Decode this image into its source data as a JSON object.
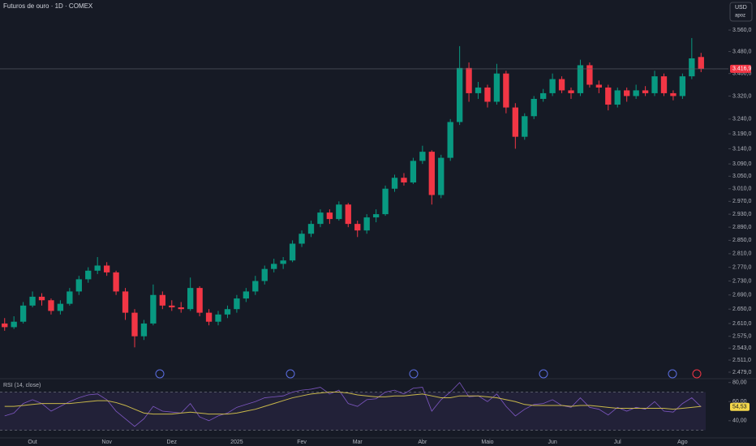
{
  "chart_data": [
    {
      "type": "candlestick",
      "title": "Futuros de ouro · 1D · COMEX",
      "log_scale": true,
      "grid": false,
      "up_color": "#089981",
      "down_color": "#f23645",
      "ylim": [
        2462,
        3675
      ],
      "yticks": [
        {
          "value": 3560,
          "label": "3.560,0"
        },
        {
          "value": 3480,
          "label": "3.480,0"
        },
        {
          "value": 3400,
          "label": "3.400,0"
        },
        {
          "value": 3320,
          "label": "3.320,0"
        },
        {
          "value": 3240,
          "label": "3.240,0"
        },
        {
          "value": 3190,
          "label": "3.190,0"
        },
        {
          "value": 3140,
          "label": "3.140,0"
        },
        {
          "value": 3090,
          "label": "3.090,0"
        },
        {
          "value": 3050,
          "label": "3.050,0"
        },
        {
          "value": 3010,
          "label": "3.010,0"
        },
        {
          "value": 2970,
          "label": "2.970,0"
        },
        {
          "value": 2930,
          "label": "2.930,0"
        },
        {
          "value": 2890,
          "label": "2.890,0"
        },
        {
          "value": 2850,
          "label": "2.850,0"
        },
        {
          "value": 2810,
          "label": "2.810,0"
        },
        {
          "value": 2770,
          "label": "2.770,0"
        },
        {
          "value": 2730,
          "label": "2.730,0"
        },
        {
          "value": 2690,
          "label": "2.690,0"
        },
        {
          "value": 2650,
          "label": "2.650,0"
        },
        {
          "value": 2610,
          "label": "2.610,0"
        },
        {
          "value": 2575,
          "label": "2.575,0"
        },
        {
          "value": 2543,
          "label": "2.543,0"
        },
        {
          "value": 2511,
          "label": "2.511,0"
        },
        {
          "value": 2479,
          "label": "2.479,0"
        }
      ],
      "categories": [
        null,
        null,
        null,
        "Out",
        null,
        null,
        null,
        null,
        null,
        null,
        null,
        "Nov",
        null,
        null,
        null,
        null,
        null,
        null,
        "Dez",
        null,
        null,
        null,
        null,
        null,
        null,
        "2025",
        null,
        null,
        null,
        null,
        null,
        null,
        "Fev",
        null,
        null,
        null,
        null,
        null,
        "Mar",
        null,
        null,
        null,
        null,
        null,
        null,
        "Abr",
        null,
        null,
        null,
        null,
        null,
        null,
        "Maio",
        null,
        null,
        null,
        null,
        null,
        null,
        "Jun",
        null,
        null,
        null,
        null,
        null,
        null,
        "Jul",
        null,
        null,
        null,
        null,
        null,
        null,
        "Ago",
        null,
        null
      ],
      "ohlc": [
        [
          2610,
          2625,
          2590,
          2600
        ],
        [
          2600,
          2630,
          2595,
          2615
        ],
        [
          2615,
          2670,
          2610,
          2660
        ],
        [
          2660,
          2700,
          2655,
          2685
        ],
        [
          2685,
          2695,
          2660,
          2675
        ],
        [
          2675,
          2680,
          2635,
          2645
        ],
        [
          2645,
          2675,
          2635,
          2665
        ],
        [
          2665,
          2710,
          2660,
          2700
        ],
        [
          2700,
          2745,
          2690,
          2735
        ],
        [
          2735,
          2770,
          2725,
          2760
        ],
        [
          2760,
          2800,
          2750,
          2775
        ],
        [
          2775,
          2785,
          2745,
          2755
        ],
        [
          2755,
          2760,
          2690,
          2700
        ],
        [
          2700,
          2710,
          2620,
          2640
        ],
        [
          2640,
          2650,
          2545,
          2575
        ],
        [
          2575,
          2620,
          2565,
          2610
        ],
        [
          2610,
          2720,
          2605,
          2690
        ],
        [
          2690,
          2700,
          2650,
          2660
        ],
        [
          2660,
          2675,
          2645,
          2655
        ],
        [
          2655,
          2670,
          2640,
          2650
        ],
        [
          2650,
          2740,
          2645,
          2710
        ],
        [
          2710,
          2715,
          2630,
          2640
        ],
        [
          2640,
          2650,
          2605,
          2615
        ],
        [
          2615,
          2645,
          2605,
          2635
        ],
        [
          2635,
          2660,
          2625,
          2650
        ],
        [
          2650,
          2690,
          2640,
          2680
        ],
        [
          2680,
          2710,
          2670,
          2700
        ],
        [
          2700,
          2745,
          2690,
          2730
        ],
        [
          2730,
          2775,
          2720,
          2765
        ],
        [
          2765,
          2795,
          2755,
          2780
        ],
        [
          2780,
          2800,
          2765,
          2790
        ],
        [
          2790,
          2850,
          2785,
          2840
        ],
        [
          2840,
          2880,
          2830,
          2870
        ],
        [
          2870,
          2910,
          2860,
          2900
        ],
        [
          2900,
          2945,
          2890,
          2935
        ],
        [
          2935,
          2945,
          2900,
          2915
        ],
        [
          2915,
          2970,
          2910,
          2960
        ],
        [
          2960,
          2965,
          2890,
          2900
        ],
        [
          2900,
          2910,
          2860,
          2880
        ],
        [
          2880,
          2930,
          2870,
          2920
        ],
        [
          2920,
          2945,
          2905,
          2930
        ],
        [
          2930,
          3020,
          2925,
          3010
        ],
        [
          3010,
          3055,
          3000,
          3045
        ],
        [
          3045,
          3060,
          3020,
          3030
        ],
        [
          3030,
          3110,
          3025,
          3100
        ],
        [
          3100,
          3150,
          3090,
          3130
        ],
        [
          3130,
          3135,
          2960,
          2990
        ],
        [
          2990,
          3120,
          2980,
          3110
        ],
        [
          3110,
          3240,
          3100,
          3230
        ],
        [
          3230,
          3500,
          3220,
          3420
        ],
        [
          3420,
          3440,
          3300,
          3330
        ],
        [
          3330,
          3370,
          3310,
          3350
        ],
        [
          3350,
          3360,
          3280,
          3300
        ],
        [
          3300,
          3435,
          3290,
          3400
        ],
        [
          3400,
          3410,
          3260,
          3280
        ],
        [
          3280,
          3295,
          3140,
          3180
        ],
        [
          3180,
          3260,
          3170,
          3250
        ],
        [
          3250,
          3320,
          3240,
          3310
        ],
        [
          3310,
          3345,
          3300,
          3330
        ],
        [
          3330,
          3400,
          3320,
          3380
        ],
        [
          3380,
          3390,
          3330,
          3340
        ],
        [
          3340,
          3350,
          3310,
          3330
        ],
        [
          3330,
          3450,
          3320,
          3430
        ],
        [
          3430,
          3440,
          3350,
          3360
        ],
        [
          3360,
          3375,
          3330,
          3350
        ],
        [
          3350,
          3360,
          3270,
          3290
        ],
        [
          3290,
          3350,
          3280,
          3340
        ],
        [
          3340,
          3350,
          3300,
          3320
        ],
        [
          3320,
          3360,
          3310,
          3340
        ],
        [
          3340,
          3355,
          3320,
          3330
        ],
        [
          3330,
          3410,
          3320,
          3390
        ],
        [
          3390,
          3400,
          3320,
          3330
        ],
        [
          3330,
          3340,
          3305,
          3320
        ],
        [
          3320,
          3400,
          3310,
          3390
        ],
        [
          3390,
          3530,
          3380,
          3455
        ],
        [
          3460,
          3475,
          3405,
          3416.9
        ]
      ],
      "last_label": "3.416,9"
    },
    {
      "type": "line",
      "title": "RSI (14, close)",
      "ylim": [
        22,
        84
      ],
      "yticks": [
        {
          "value": 80,
          "label": "80,00"
        },
        {
          "value": 60,
          "label": "60,00"
        },
        {
          "value": 40,
          "label": "40,00"
        }
      ],
      "bands": [
        70,
        30
      ],
      "series": [
        {
          "color": "#7e57c2",
          "values": [
            45,
            48,
            58,
            62,
            58,
            50,
            55,
            60,
            64,
            67,
            68,
            62,
            50,
            42,
            34,
            42,
            55,
            50,
            49,
            48,
            58,
            44,
            40,
            45,
            48,
            54,
            57,
            60,
            64,
            65,
            66,
            70,
            72,
            73,
            75,
            68,
            72,
            58,
            55,
            62,
            63,
            70,
            72,
            68,
            74,
            75,
            50,
            62,
            70,
            80,
            65,
            66,
            60,
            68,
            55,
            45,
            52,
            57,
            58,
            62,
            56,
            54,
            64,
            54,
            52,
            46,
            54,
            50,
            54,
            52,
            60,
            50,
            49,
            58,
            64,
            54.53
          ],
          "last_label": "54,53"
        },
        {
          "color": "#c9b84a",
          "values": [
            55,
            55,
            56,
            57,
            58,
            58,
            58,
            58,
            59,
            60,
            61,
            61,
            59,
            56,
            52,
            48,
            47,
            47,
            47,
            48,
            49,
            48,
            47,
            47,
            47,
            48,
            50,
            52,
            55,
            58,
            61,
            64,
            66,
            68,
            69,
            70,
            70,
            69,
            67,
            66,
            65,
            65,
            66,
            66,
            67,
            68,
            66,
            64,
            64,
            66,
            66,
            66,
            65,
            64,
            62,
            60,
            57,
            56,
            56,
            56,
            56,
            55,
            56,
            56,
            55,
            54,
            53,
            53,
            53,
            53,
            53,
            53,
            52,
            53,
            54,
            55
          ]
        }
      ]
    }
  ],
  "ui": {
    "currency": "USD",
    "mode": "apoz"
  }
}
